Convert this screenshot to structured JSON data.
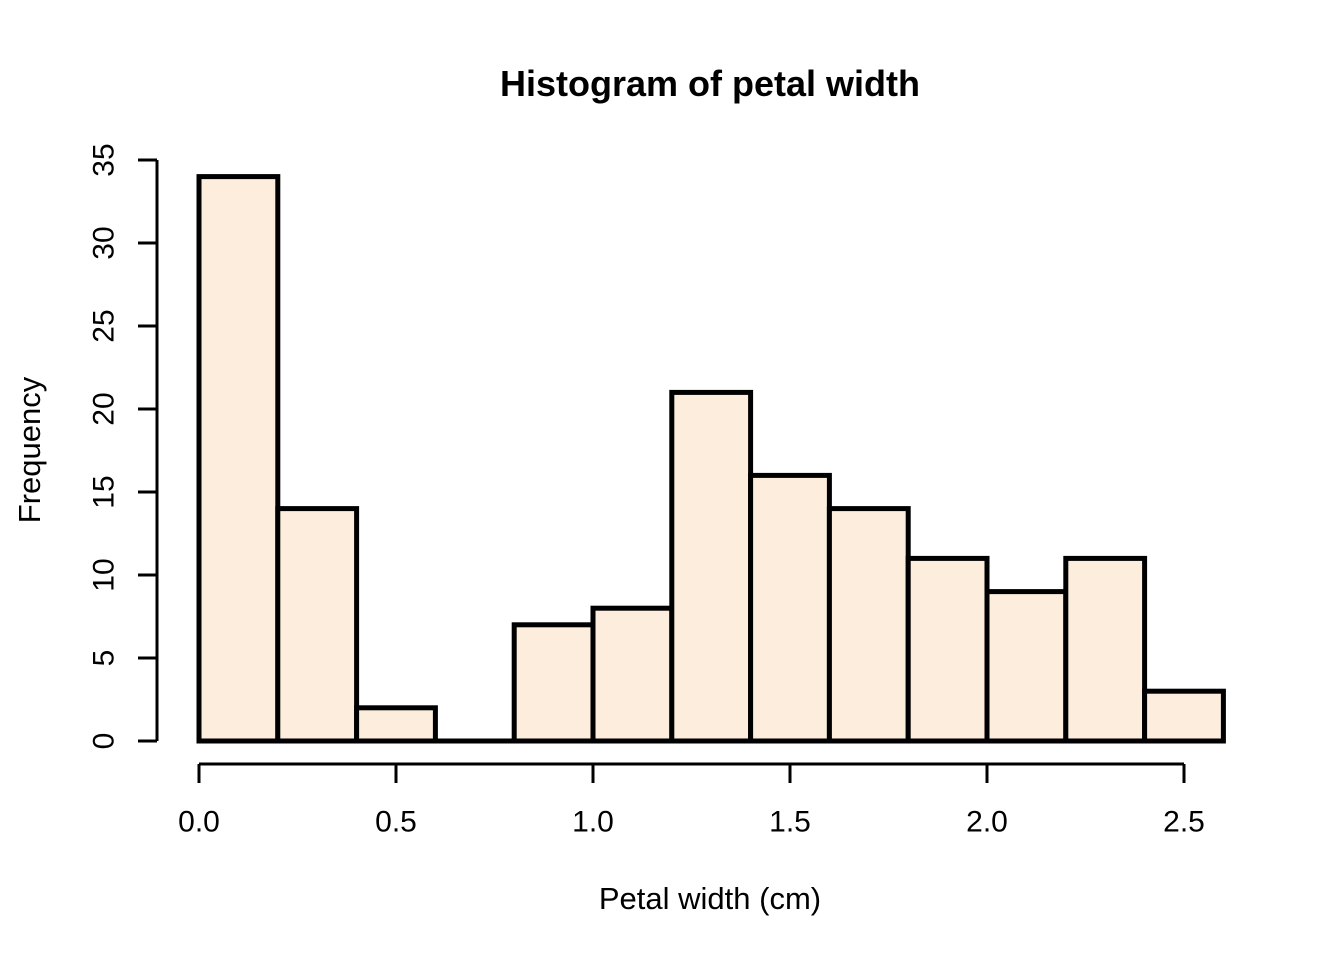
{
  "chart_data": {
    "type": "bar",
    "subtype": "histogram",
    "title": "Histogram of petal width",
    "xlabel": "Petal width (cm)",
    "ylabel": "Frequency",
    "bin_start": 0.0,
    "bin_width": 0.2,
    "breaks": [
      0.0,
      0.2,
      0.4,
      0.6,
      0.8,
      1.0,
      1.2,
      1.4,
      1.6,
      1.8,
      2.0,
      2.2,
      2.4,
      2.6
    ],
    "counts": [
      34,
      14,
      2,
      0,
      7,
      8,
      21,
      16,
      14,
      11,
      9,
      11,
      3
    ],
    "xlim": [
      0.0,
      2.6
    ],
    "ylim": [
      0,
      35
    ],
    "x_tick_values": [
      0.0,
      0.5,
      1.0,
      1.5,
      2.0,
      2.5
    ],
    "x_tick_labels": [
      "0.0",
      "0.5",
      "1.0",
      "1.5",
      "2.0",
      "2.5"
    ],
    "y_tick_values": [
      0,
      5,
      10,
      15,
      20,
      25,
      30,
      35
    ],
    "y_tick_labels": [
      "0",
      "5",
      "10",
      "15",
      "20",
      "25",
      "30",
      "35"
    ],
    "grid": "off",
    "legend": "none",
    "colors": {
      "bar_fill": "#FCEDDC",
      "bar_border": "#000000",
      "axis": "#000000",
      "text": "#000000",
      "background": "#FFFFFF"
    }
  }
}
